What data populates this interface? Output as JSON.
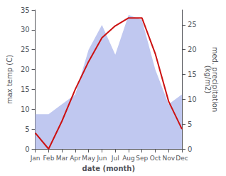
{
  "chart_data": {
    "type": "line",
    "categories": [
      "Jan",
      "Feb",
      "Mar",
      "Apr",
      "May",
      "Jun",
      "Jul",
      "Aug",
      "Sep",
      "Oct",
      "Nov",
      "Dec"
    ],
    "series": [
      {
        "type": "area",
        "color": "#c0c8f0",
        "axis": "y2",
        "values": [
          7,
          7,
          9,
          11,
          20,
          25,
          19,
          27,
          26,
          16,
          9,
          11
        ]
      },
      {
        "type": "line",
        "color": "#cc1111",
        "values": [
          4,
          0,
          7,
          15,
          22,
          28,
          31,
          33,
          33,
          24,
          12,
          5
        ]
      }
    ],
    "xlabel": "date (month)",
    "ylabel": "max temp (C)",
    "y2label": "med. precipitation\n(kg/m2)",
    "ylim": [
      0,
      35
    ],
    "yticks": [
      0,
      5,
      10,
      15,
      20,
      25,
      30,
      35
    ],
    "y2lim": [
      0,
      28
    ],
    "y2ticks": [
      0,
      5,
      10,
      15,
      20,
      25
    ],
    "grid": false
  }
}
